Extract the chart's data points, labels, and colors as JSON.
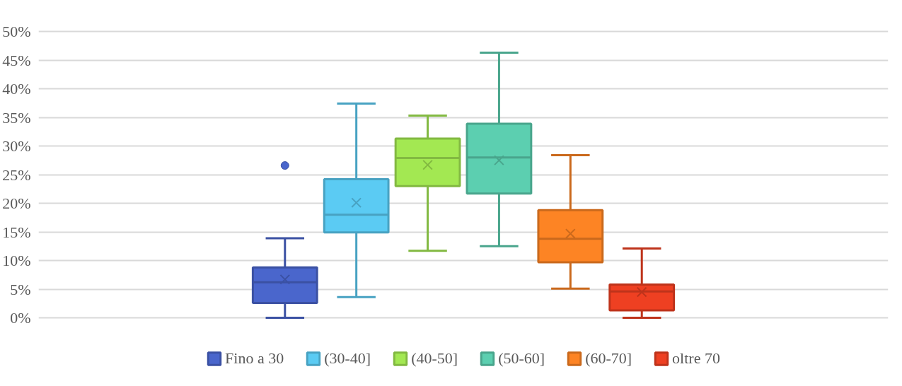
{
  "chart_data": {
    "type": "box",
    "categories": [
      null
    ],
    "ylim": [
      0,
      50
    ],
    "yticks": [
      {
        "value": 0,
        "label": "0%"
      },
      {
        "value": 5,
        "label": "5%"
      },
      {
        "value": 10,
        "label": "10%"
      },
      {
        "value": 15,
        "label": "15%"
      },
      {
        "value": 20,
        "label": "20%"
      },
      {
        "value": 25,
        "label": "25%"
      },
      {
        "value": 30,
        "label": "30%"
      },
      {
        "value": 35,
        "label": "35%"
      },
      {
        "value": 40,
        "label": "40%"
      },
      {
        "value": 45,
        "label": "45%"
      },
      {
        "value": 50,
        "label": "50%"
      }
    ],
    "grid": "y",
    "legend": "bottom",
    "series": [
      {
        "name": "Fino a 30",
        "color": "#4a66cc",
        "boxes": [
          {
            "low": 0,
            "q1": 2.6,
            "median": 6.2,
            "q3": 8.8,
            "high": 13.9,
            "mean": 6.7,
            "outliers": [
              26.6
            ]
          }
        ]
      },
      {
        "name": "(30-40]",
        "color": "#5bcbf3",
        "boxes": [
          {
            "low": 3.6,
            "q1": 14.9,
            "median": 18.0,
            "q3": 24.2,
            "high": 37.4,
            "mean": 20.1
          }
        ]
      },
      {
        "name": "(40-50]",
        "color": "#a3e852",
        "boxes": [
          {
            "low": 11.7,
            "q1": 23.0,
            "median": 27.9,
            "q3": 31.3,
            "high": 35.3,
            "mean": 26.7
          }
        ]
      },
      {
        "name": "(50-60]",
        "color": "#5ccfb0",
        "boxes": [
          {
            "low": 12.5,
            "q1": 21.7,
            "median": 28.0,
            "q3": 33.9,
            "high": 46.3,
            "mean": 27.5
          }
        ]
      },
      {
        "name": "(60-70]",
        "color": "#fd8424",
        "boxes": [
          {
            "low": 5.1,
            "q1": 9.7,
            "median": 13.8,
            "q3": 18.8,
            "high": 28.4,
            "mean": 14.7
          }
        ]
      },
      {
        "name": "oltre 70",
        "color": "#ee4022",
        "boxes": [
          {
            "low": 0,
            "q1": 1.3,
            "median": 4.6,
            "q3": 5.8,
            "high": 12.1,
            "mean": 4.5
          }
        ]
      }
    ]
  }
}
